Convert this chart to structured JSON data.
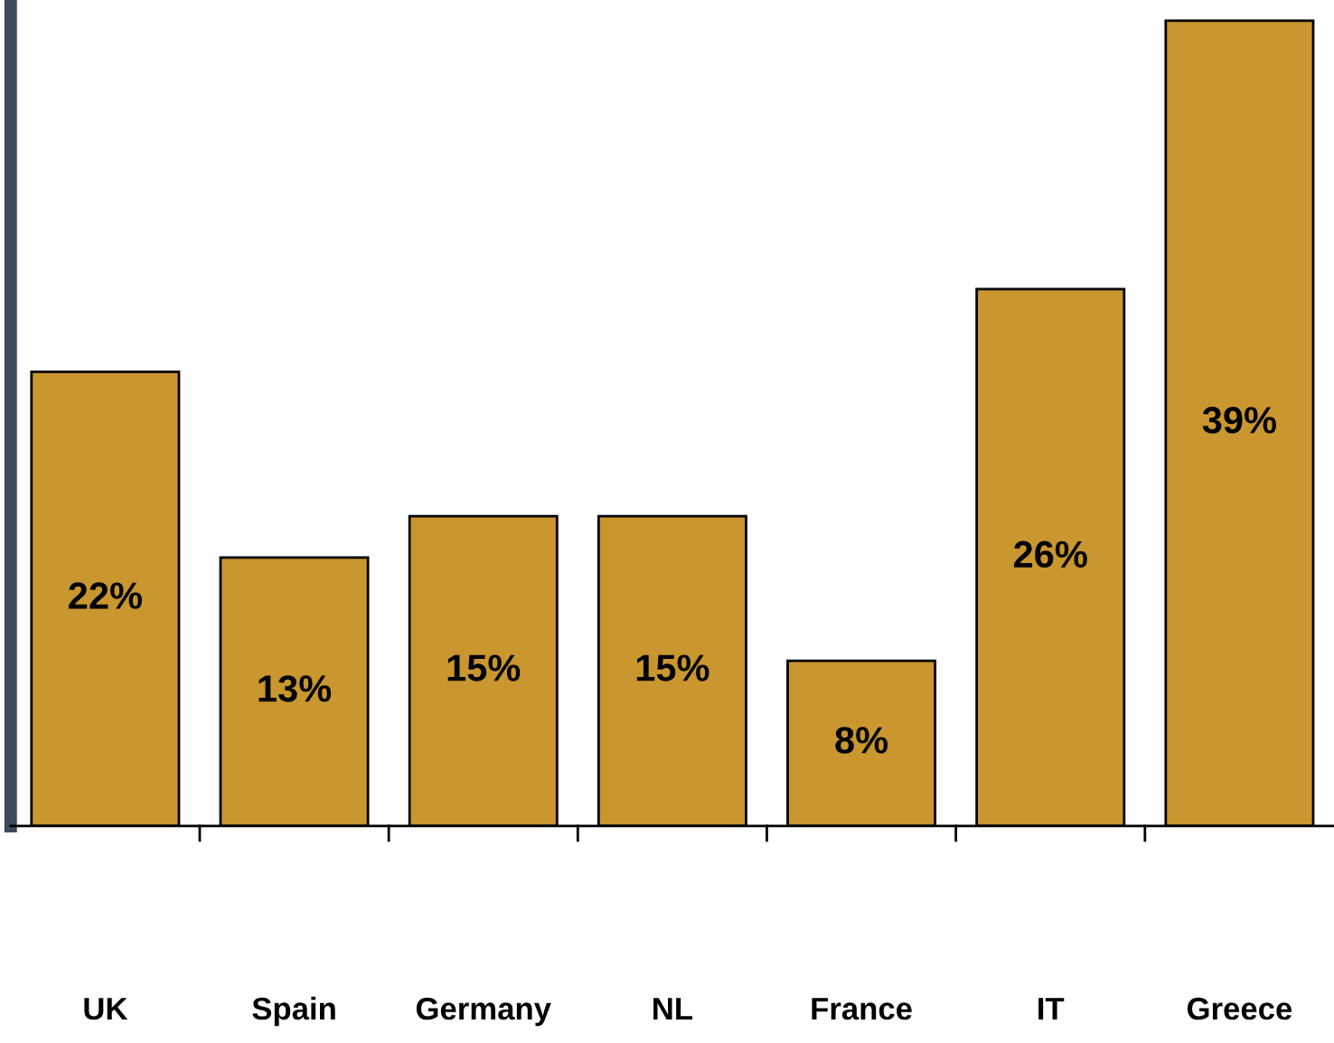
{
  "chart_data": {
    "type": "bar",
    "categories": [
      "UK",
      "Spain",
      "Germany",
      "NL",
      "France",
      "IT",
      "Greece"
    ],
    "values": [
      22,
      13,
      15,
      15,
      8,
      26,
      39
    ],
    "value_labels": [
      "22%",
      "13%",
      "15%",
      "15%",
      "8%",
      "26%",
      "39%"
    ],
    "color": "#c9962f",
    "ylim": [
      0,
      40
    ],
    "tick_labels": "x",
    "grid": false,
    "legend": false
  }
}
